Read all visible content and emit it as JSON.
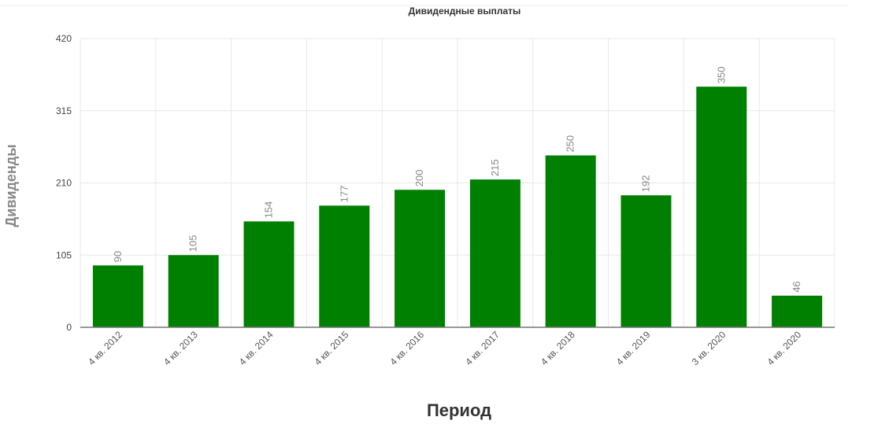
{
  "chart_data": {
    "type": "bar",
    "title": "Дивидендные выплаты",
    "xlabel": "Период",
    "ylabel": "Дивиденды",
    "categories": [
      "4 кв. 2012",
      "4 кв. 2013",
      "4 кв. 2014",
      "4 кв. 2015",
      "4 кв. 2016",
      "4 кв. 2017",
      "4 кв. 2018",
      "4 кв. 2019",
      "3 кв. 2020",
      "4 кв. 2020"
    ],
    "values": [
      90,
      105,
      154,
      177,
      200,
      215,
      250,
      192,
      350,
      46
    ],
    "ylim": [
      0,
      420
    ],
    "yticks": [
      0,
      105,
      210,
      315,
      420
    ],
    "grid": true,
    "legend": "none",
    "colors": {
      "bar": "#008000",
      "grid": "#e8e8e8",
      "axis": "#777777"
    }
  }
}
